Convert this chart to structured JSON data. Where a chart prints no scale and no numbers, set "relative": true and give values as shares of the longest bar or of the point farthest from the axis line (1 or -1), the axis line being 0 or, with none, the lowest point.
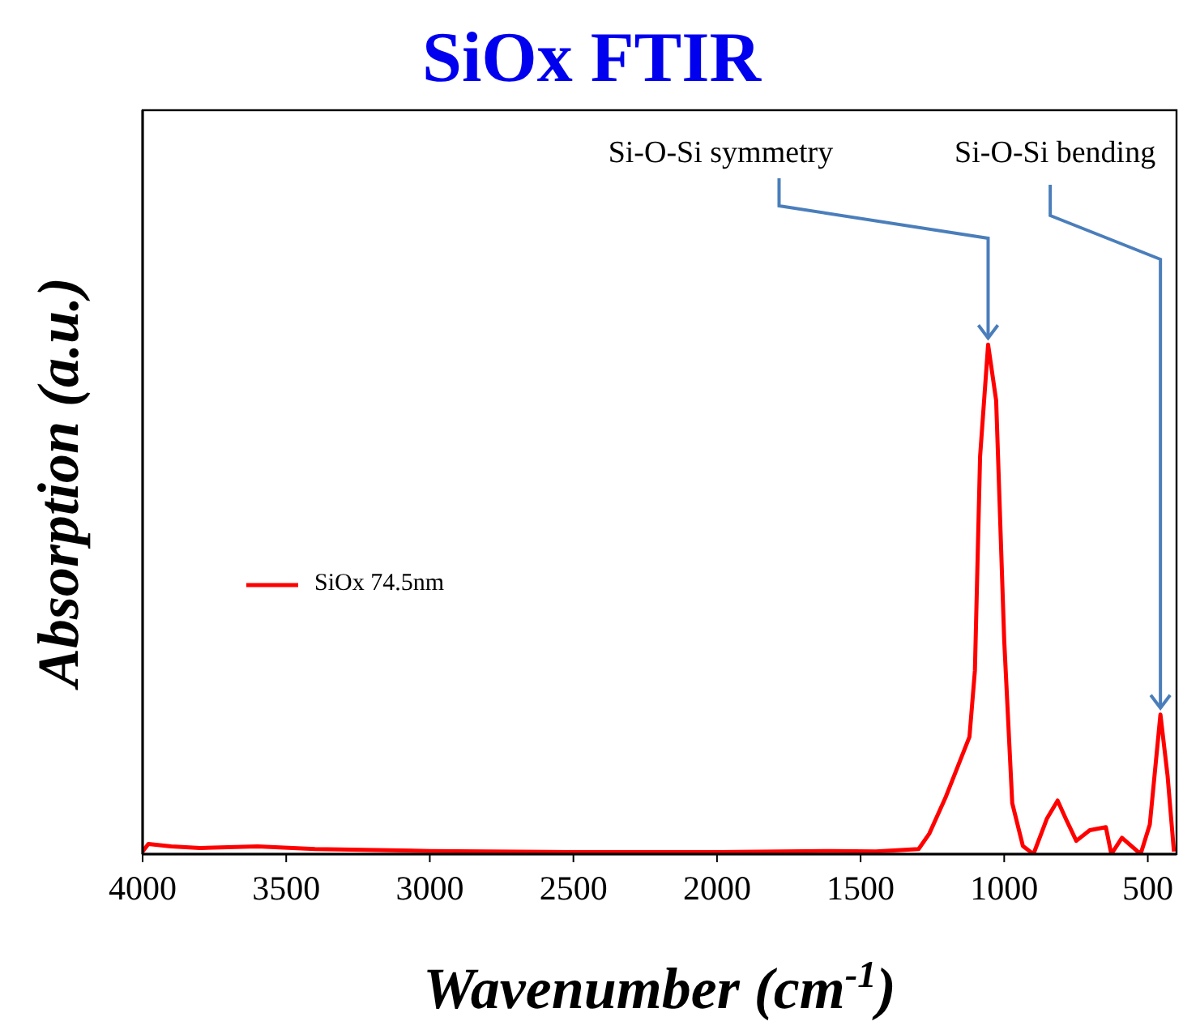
{
  "chart_data": {
    "type": "line",
    "title": "SiOx FTIR",
    "xlabel": "Wavenumber (cm$^{-1}$)",
    "ylabel": "Absorption (a.u.)",
    "relative": true,
    "xlim": [
      4000,
      400
    ],
    "xticks": [
      4000,
      3500,
      3000,
      2500,
      2000,
      1500,
      1000,
      500
    ],
    "tick_labels": "x",
    "legend": "left",
    "marker": "none",
    "line_style": "solid",
    "annotations": [
      {
        "text": "Si-O-Si symmetry",
        "x": 1056,
        "y": 1
      },
      {
        "text": "Si-O-Si bending",
        "x": 456,
        "y": 0.274
      }
    ],
    "series": [
      {
        "name": "SiOx 74.5nm",
        "color": "#ff0000",
        "x": [
          4000,
          3980,
          3900,
          3800,
          3600,
          3400,
          3000,
          2500,
          2000,
          1600,
          1447,
          1298,
          1261,
          1205,
          1121,
          1102,
          1084,
          1056,
          1028,
          1000,
          972,
          935,
          898,
          851,
          814,
          786,
          749,
          702,
          646,
          627,
          590,
          525,
          493,
          456,
          431,
          409
        ],
        "values": [
          0.005,
          0.02,
          0.015,
          0.012,
          0.015,
          0.01,
          0.006,
          0.004,
          0.004,
          0.006,
          0.005,
          0.01,
          0.04,
          0.11,
          0.23,
          0.36,
          0.78,
          1,
          0.89,
          0.42,
          0.1,
          0.016,
          0,
          0.07,
          0.105,
          0.07,
          0.026,
          0.047,
          0.053,
          0,
          0.032,
          0,
          0.058,
          0.274,
          0.153,
          0.005
        ]
      }
    ]
  }
}
